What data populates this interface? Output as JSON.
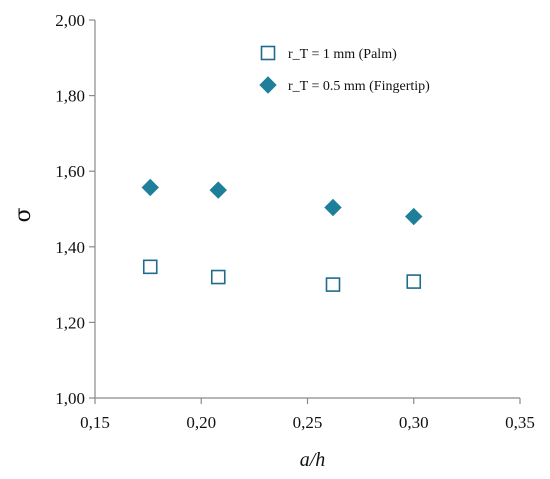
{
  "chart_data": {
    "type": "scatter",
    "xlabel": "a/h",
    "ylabel": "σ",
    "xlim": [
      0.15,
      0.35
    ],
    "ylim": [
      1.0,
      2.0
    ],
    "xticks": [
      0.15,
      0.2,
      0.25,
      0.3,
      0.35
    ],
    "yticks": [
      1.0,
      1.2,
      1.4,
      1.6,
      1.8,
      2.0
    ],
    "xtick_labels": [
      "0,15",
      "0,20",
      "0,25",
      "0,30",
      "0,35"
    ],
    "ytick_labels": [
      "1,00",
      "1,20",
      "1,40",
      "1,60",
      "1,80",
      "2,00"
    ],
    "grid": false,
    "legend_position": "top-right",
    "series": [
      {
        "name": "r_T = 1 mm (Palm)",
        "marker": "open-square",
        "color": "#1f6b8c",
        "x": [
          0.176,
          0.208,
          0.262,
          0.3
        ],
        "y": [
          1.347,
          1.32,
          1.3,
          1.308
        ]
      },
      {
        "name": "r_T = 0.5 mm (Fingertip)",
        "marker": "filled-diamond",
        "color": "#1d7f99",
        "x": [
          0.176,
          0.208,
          0.262,
          0.3
        ],
        "y": [
          1.557,
          1.55,
          1.504,
          1.48
        ]
      }
    ]
  }
}
